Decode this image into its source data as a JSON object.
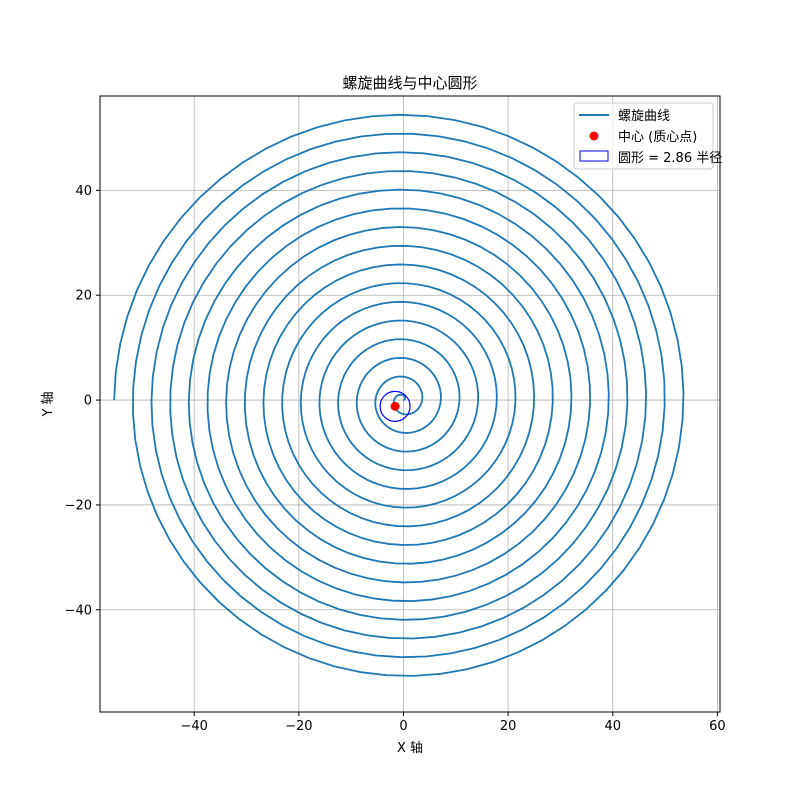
{
  "chart_data": {
    "type": "line",
    "title": "螺旋曲线与中心圆形",
    "xlabel": "X 轴",
    "ylabel": "Y 轴",
    "xlim": [
      -58,
      60.5
    ],
    "ylim": [
      -59.5,
      58
    ],
    "xticks": [
      -40,
      -20,
      0,
      20,
      40,
      60
    ],
    "yticks": [
      -40,
      -20,
      0,
      20,
      40
    ],
    "xtick_labels": [
      "−40",
      "−20",
      "0",
      "20",
      "40",
      "60"
    ],
    "ytick_labels": [
      "−40",
      "−20",
      "0",
      "20",
      "40"
    ],
    "grid": true,
    "legend_position": "top-right",
    "series": [
      {
        "name": "螺旋曲线",
        "kind": "archimedean-spiral",
        "color": "#1f77b4",
        "r_start": 0,
        "r_end": 55.3,
        "turns": 15.5,
        "center": [
          0,
          0
        ]
      }
    ],
    "center_point": {
      "name": "中心 (质心点)",
      "x": -1.6,
      "y": -1.2,
      "color": "#ff0000"
    },
    "circle": {
      "name": "圆形 = 2.86 半径",
      "cx": -1.6,
      "cy": -1.2,
      "r": 2.86,
      "color": "#0000ff"
    }
  }
}
